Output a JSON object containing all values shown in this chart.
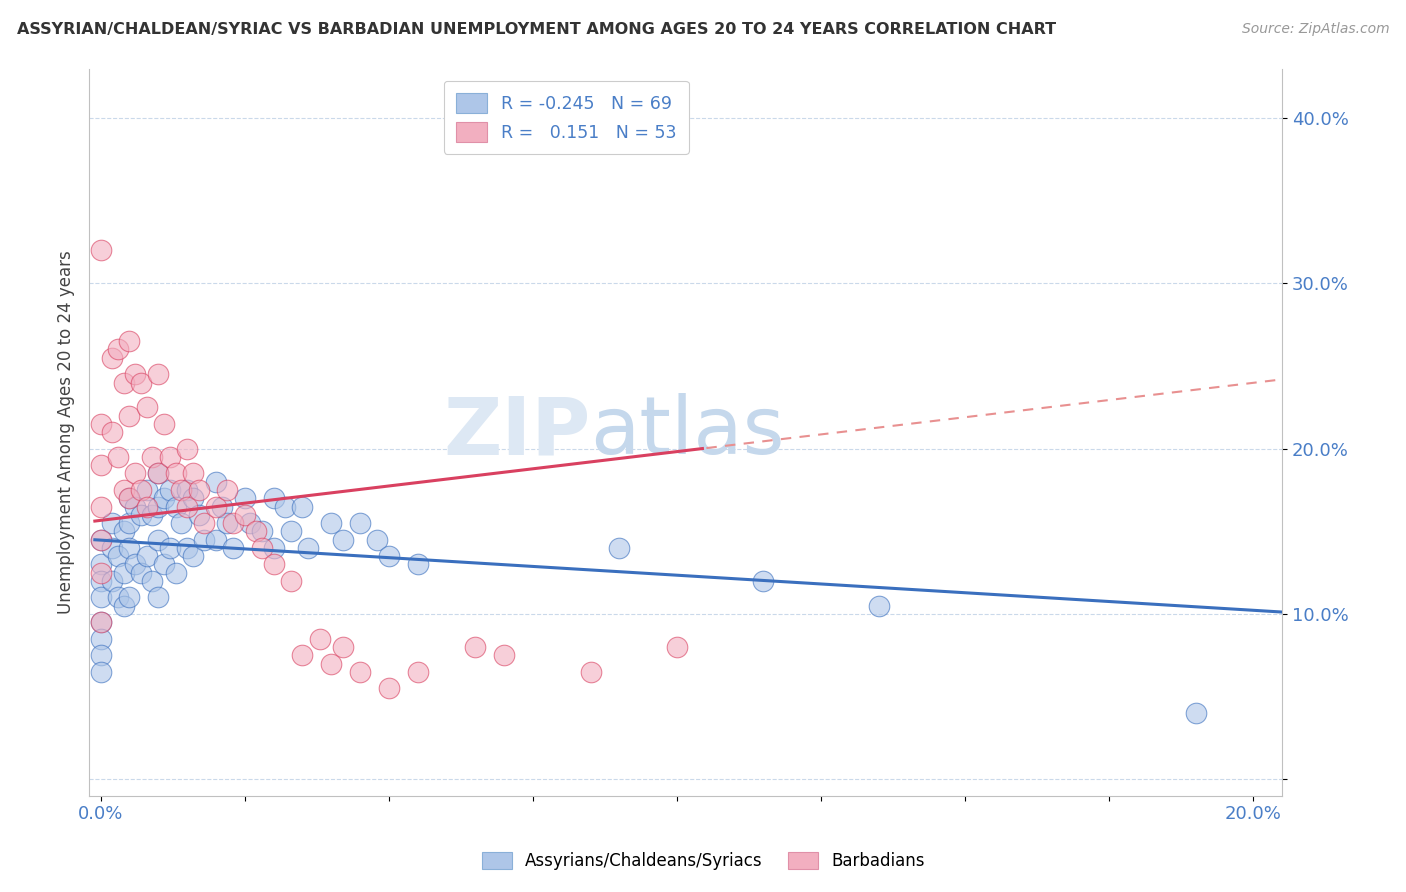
{
  "title": "ASSYRIAN/CHALDEAN/SYRIAC VS BARBADIAN UNEMPLOYMENT AMONG AGES 20 TO 24 YEARS CORRELATION CHART",
  "source": "Source: ZipAtlas.com",
  "ylabel": "Unemployment Among Ages 20 to 24 years",
  "blue_color": "#aec6e8",
  "pink_color": "#f2afc0",
  "blue_line_color": "#3a6fbe",
  "pink_line_color": "#d94060",
  "pink_dash_color": "#e89090",
  "watermark_zip": "ZIP",
  "watermark_atlas": "atlas",
  "R_blue": -0.245,
  "N_blue": 69,
  "R_pink": 0.151,
  "N_pink": 53,
  "blue_scatter_x": [
    0.0,
    0.0,
    0.0,
    0.0,
    0.0,
    0.0,
    0.0,
    0.0,
    0.002,
    0.002,
    0.002,
    0.003,
    0.003,
    0.004,
    0.004,
    0.004,
    0.005,
    0.005,
    0.005,
    0.005,
    0.006,
    0.006,
    0.007,
    0.007,
    0.008,
    0.008,
    0.009,
    0.009,
    0.01,
    0.01,
    0.01,
    0.01,
    0.011,
    0.011,
    0.012,
    0.012,
    0.013,
    0.013,
    0.014,
    0.015,
    0.015,
    0.016,
    0.016,
    0.017,
    0.018,
    0.02,
    0.02,
    0.021,
    0.022,
    0.023,
    0.025,
    0.026,
    0.028,
    0.03,
    0.03,
    0.032,
    0.033,
    0.035,
    0.036,
    0.04,
    0.042,
    0.045,
    0.048,
    0.05,
    0.055,
    0.09,
    0.115,
    0.135,
    0.19
  ],
  "blue_scatter_y": [
    0.145,
    0.13,
    0.12,
    0.11,
    0.095,
    0.085,
    0.075,
    0.065,
    0.155,
    0.14,
    0.12,
    0.135,
    0.11,
    0.15,
    0.125,
    0.105,
    0.17,
    0.155,
    0.14,
    0.11,
    0.165,
    0.13,
    0.16,
    0.125,
    0.175,
    0.135,
    0.16,
    0.12,
    0.185,
    0.165,
    0.145,
    0.11,
    0.17,
    0.13,
    0.175,
    0.14,
    0.165,
    0.125,
    0.155,
    0.175,
    0.14,
    0.17,
    0.135,
    0.16,
    0.145,
    0.18,
    0.145,
    0.165,
    0.155,
    0.14,
    0.17,
    0.155,
    0.15,
    0.17,
    0.14,
    0.165,
    0.15,
    0.165,
    0.14,
    0.155,
    0.145,
    0.155,
    0.145,
    0.135,
    0.13,
    0.14,
    0.12,
    0.105,
    0.04
  ],
  "pink_scatter_x": [
    0.0,
    0.0,
    0.0,
    0.0,
    0.0,
    0.0,
    0.0,
    0.002,
    0.002,
    0.003,
    0.003,
    0.004,
    0.004,
    0.005,
    0.005,
    0.005,
    0.006,
    0.006,
    0.007,
    0.007,
    0.008,
    0.008,
    0.009,
    0.01,
    0.01,
    0.011,
    0.012,
    0.013,
    0.014,
    0.015,
    0.015,
    0.016,
    0.017,
    0.018,
    0.02,
    0.022,
    0.023,
    0.025,
    0.027,
    0.028,
    0.03,
    0.033,
    0.035,
    0.038,
    0.04,
    0.042,
    0.045,
    0.05,
    0.055,
    0.065,
    0.07,
    0.085,
    0.1
  ],
  "pink_scatter_y": [
    0.32,
    0.215,
    0.19,
    0.165,
    0.145,
    0.125,
    0.095,
    0.255,
    0.21,
    0.26,
    0.195,
    0.24,
    0.175,
    0.265,
    0.22,
    0.17,
    0.245,
    0.185,
    0.24,
    0.175,
    0.225,
    0.165,
    0.195,
    0.245,
    0.185,
    0.215,
    0.195,
    0.185,
    0.175,
    0.2,
    0.165,
    0.185,
    0.175,
    0.155,
    0.165,
    0.175,
    0.155,
    0.16,
    0.15,
    0.14,
    0.13,
    0.12,
    0.075,
    0.085,
    0.07,
    0.08,
    0.065,
    0.055,
    0.065,
    0.08,
    0.075,
    0.065,
    0.08
  ]
}
